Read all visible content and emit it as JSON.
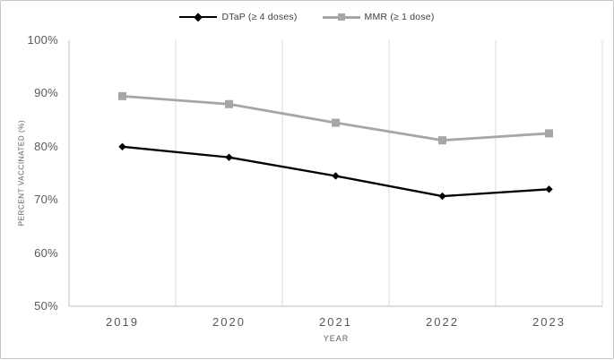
{
  "chart_data": {
    "type": "line",
    "title": "",
    "categories": [
      "2019",
      "2020",
      "2021",
      "2022",
      "2023"
    ],
    "series": [
      {
        "name": "DTaP (≥ 4 doses)",
        "values": [
          80,
          78,
          74.5,
          70.7,
          72
        ],
        "color": "#000000",
        "marker": "diamond"
      },
      {
        "name": "MMR (≥ 1 dose)",
        "values": [
          89.5,
          88,
          84.5,
          81.2,
          82.5
        ],
        "color": "#a6a6a6",
        "marker": "square"
      }
    ],
    "xlabel": "YEAR",
    "ylabel": "PERCENT VACCINATED (%)",
    "ylim": [
      50,
      100
    ],
    "yticks": [
      {
        "value": 100,
        "label": "100%"
      },
      {
        "value": 90,
        "label": "90%"
      },
      {
        "value": 80,
        "label": "80%"
      },
      {
        "value": 70,
        "label": "70%"
      },
      {
        "value": 60,
        "label": "60%"
      },
      {
        "value": 50,
        "label": "50%"
      }
    ],
    "legend_position": "top",
    "grid": "vertical lines at category boundaries, no horizontal gridlines"
  },
  "colors": {
    "background": "#ffffff",
    "frame_border": "#c6c6c6",
    "gridline": "#d9d9d9",
    "axis_line": "#bfbfbf",
    "tick_label": "#595959",
    "axis_title": "#595959",
    "legend_label": "#404040"
  }
}
